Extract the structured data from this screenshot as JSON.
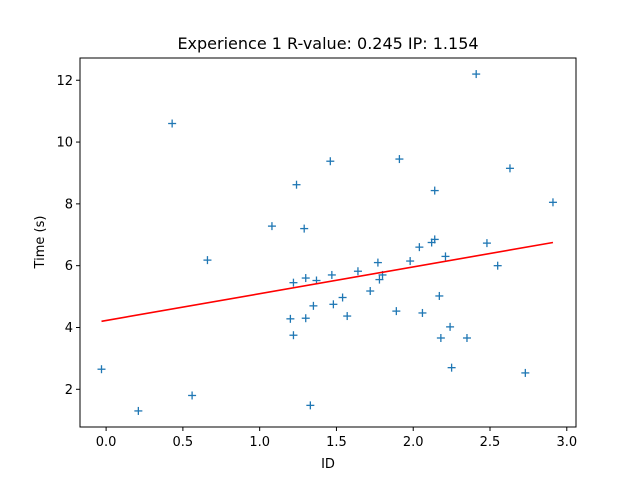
{
  "chart_data": {
    "type": "scatter",
    "title": "Experience 1 R-value: 0.245 IP: 1.154",
    "xlabel": "ID",
    "ylabel": "Time (s)",
    "xlim": [
      -0.17,
      3.06
    ],
    "ylim": [
      0.78,
      12.72
    ],
    "xticks": [
      0.0,
      0.5,
      1.0,
      1.5,
      2.0,
      2.5,
      3.0
    ],
    "xtick_labels": [
      "0.0",
      "0.5",
      "1.0",
      "1.5",
      "2.0",
      "2.5",
      "3.0"
    ],
    "yticks": [
      2,
      4,
      6,
      8,
      10,
      12
    ],
    "ytick_labels": [
      "2",
      "4",
      "6",
      "8",
      "10",
      "12"
    ],
    "grid": false,
    "marker": "+",
    "point_color": "#1f77b4",
    "line_color": "#ff0000",
    "series": [
      {
        "points": [
          [
            -0.03,
            2.65
          ],
          [
            0.21,
            1.3
          ],
          [
            0.43,
            10.6
          ],
          [
            0.56,
            1.8
          ],
          [
            0.66,
            6.18
          ],
          [
            1.08,
            7.28
          ],
          [
            1.2,
            4.28
          ],
          [
            1.22,
            5.45
          ],
          [
            1.22,
            3.75
          ],
          [
            1.24,
            8.62
          ],
          [
            1.29,
            7.2
          ],
          [
            1.3,
            5.6
          ],
          [
            1.3,
            4.3
          ],
          [
            1.33,
            1.48
          ],
          [
            1.35,
            4.7
          ],
          [
            1.37,
            5.52
          ],
          [
            1.46,
            9.38
          ],
          [
            1.47,
            5.7
          ],
          [
            1.48,
            4.75
          ],
          [
            1.54,
            4.97
          ],
          [
            1.57,
            4.37
          ],
          [
            1.64,
            5.82
          ],
          [
            1.72,
            5.18
          ],
          [
            1.77,
            6.1
          ],
          [
            1.78,
            5.55
          ],
          [
            1.8,
            5.7
          ],
          [
            1.89,
            4.53
          ],
          [
            1.91,
            9.45
          ],
          [
            1.98,
            6.15
          ],
          [
            2.04,
            6.6
          ],
          [
            2.06,
            4.47
          ],
          [
            2.12,
            6.75
          ],
          [
            2.14,
            6.85
          ],
          [
            2.14,
            8.43
          ],
          [
            2.17,
            5.02
          ],
          [
            2.18,
            3.66
          ],
          [
            2.21,
            6.3
          ],
          [
            2.24,
            4.02
          ],
          [
            2.25,
            2.7
          ],
          [
            2.35,
            3.66
          ],
          [
            2.41,
            12.2
          ],
          [
            2.48,
            6.73
          ],
          [
            2.55,
            6.0
          ],
          [
            2.63,
            9.15
          ],
          [
            2.73,
            2.53
          ],
          [
            2.91,
            8.05
          ]
        ]
      }
    ],
    "fit_line": {
      "x": [
        -0.03,
        2.91
      ],
      "y": [
        4.2,
        6.75
      ]
    }
  }
}
